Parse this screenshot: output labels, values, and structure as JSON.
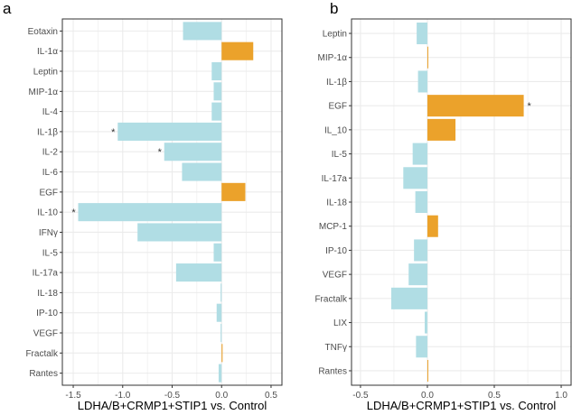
{
  "colors": {
    "negative": "#b0dde4",
    "positive": "#eba22b",
    "grid": "#ebebeb",
    "border": "#333333"
  },
  "chart_data": [
    {
      "type": "bar",
      "orientation": "horizontal",
      "panel_label": "a",
      "xlabel": "LDHA/B+CRMP1+STIP1 vs. Control",
      "xlim": [
        -1.61,
        0.61
      ],
      "xticks": [
        -1.5,
        -1.0,
        -0.5,
        0.0,
        0.5
      ],
      "xtick_labels": [
        "-1.5",
        "-1.0",
        "-0.5",
        "0.0",
        "0.5"
      ],
      "grid": true,
      "categories": [
        "Eotaxin",
        "IL-1α",
        "Leptin",
        "MIP-1α",
        "IL-4",
        "IL-1β",
        "IL-2",
        "IL-6",
        "EGF",
        "IL-10",
        "IFNγ",
        "IL-5",
        "IL-17a",
        "IL-18",
        "IP-10",
        "VEGF",
        "Fractalk",
        "Rantes"
      ],
      "values": [
        -0.39,
        0.32,
        -0.1,
        -0.08,
        -0.1,
        -1.05,
        -0.58,
        -0.4,
        0.24,
        -1.45,
        -0.85,
        -0.08,
        -0.46,
        -0.01,
        -0.05,
        -0.01,
        0.01,
        -0.03
      ],
      "significance": [
        "",
        "",
        "",
        "",
        "",
        "*",
        "*",
        "",
        "",
        "*",
        "",
        "",
        "",
        "",
        "",
        "",
        "",
        ""
      ]
    },
    {
      "type": "bar",
      "orientation": "horizontal",
      "panel_label": "b",
      "xlabel": "LDHA/B+CRMP1+STIP1 vs. Control",
      "xlim": [
        -0.567,
        1.074
      ],
      "xticks": [
        -0.5,
        0.0,
        0.5,
        1.0
      ],
      "xtick_labels": [
        "-0.5",
        "0.0",
        "0.5",
        "1.0"
      ],
      "grid": true,
      "categories": [
        "Leptin",
        "MIP-1α",
        "IL-1β",
        "EGF",
        "IL_10",
        "IL-5",
        "IL-17a",
        "IL-18",
        "MCP-1",
        "IP-10",
        "VEGF",
        "Fractalk",
        "LIX",
        "TNFγ",
        "Rantes"
      ],
      "values": [
        -0.08,
        0.005,
        -0.07,
        0.72,
        0.21,
        -0.11,
        -0.18,
        -0.09,
        0.08,
        -0.1,
        -0.14,
        -0.27,
        -0.02,
        -0.085,
        0.005
      ],
      "significance": [
        "",
        "",
        "",
        "*",
        "",
        "",
        "",
        "",
        "",
        "",
        "",
        "",
        "",
        "",
        ""
      ]
    }
  ]
}
